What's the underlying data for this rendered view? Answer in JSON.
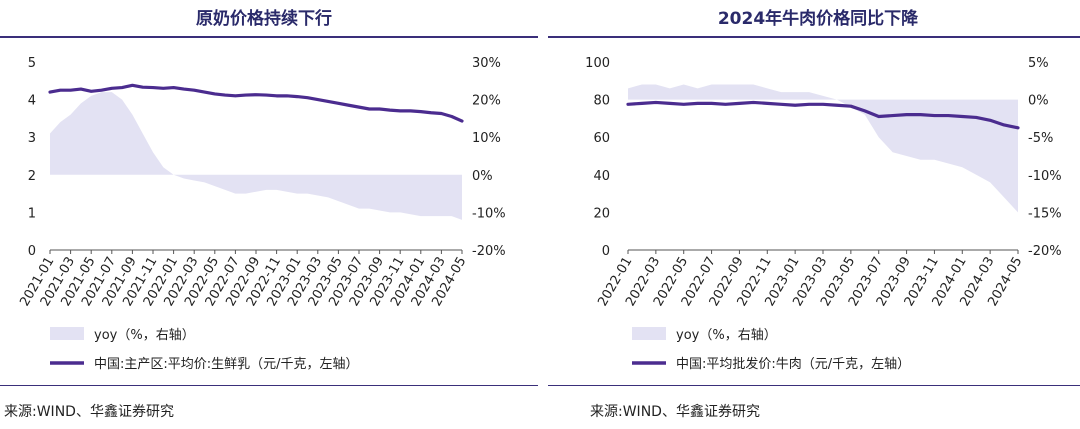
{
  "charts": {
    "left": {
      "title": "原奶价格持续下行",
      "source": "来源:WIND、华鑫证券研究"
    },
    "right": {
      "title": "2024年牛肉价格同比下降",
      "source": "来源:WIND、华鑫证券研究"
    }
  },
  "colors": {
    "line": "#4b2c8f",
    "area": "#e3e2f3",
    "title": "#2a2a6a",
    "rule": "#3a2f7a"
  },
  "chart_data": [
    {
      "type": "line",
      "title": "原奶价格持续下行",
      "x": [
        "2021-01",
        "2021-02",
        "2021-03",
        "2021-04",
        "2021-05",
        "2021-06",
        "2021-07",
        "2021-08",
        "2021-09",
        "2021-10",
        "2021-11",
        "2021-12",
        "2022-01",
        "2022-02",
        "2022-03",
        "2022-04",
        "2022-05",
        "2022-06",
        "2022-07",
        "2022-08",
        "2022-09",
        "2022-10",
        "2022-11",
        "2022-12",
        "2023-01",
        "2023-02",
        "2023-03",
        "2023-04",
        "2023-05",
        "2023-06",
        "2023-07",
        "2023-08",
        "2023-09",
        "2023-10",
        "2023-11",
        "2023-12",
        "2024-01",
        "2024-02",
        "2024-03",
        "2024-04",
        "2024-05"
      ],
      "x_tick_labels": [
        "2021-01",
        "2021-03",
        "2021-05",
        "2021-07",
        "2021-09",
        "2021-11",
        "2022-01",
        "2022-03",
        "2022-05",
        "2022-07",
        "2022-09",
        "2022-11",
        "2023-01",
        "2023-03",
        "2023-05",
        "2023-07",
        "2023-09",
        "2023-11",
        "2024-01",
        "2024-03",
        "2024-05"
      ],
      "y_left_ticks": [
        "0",
        "1",
        "2",
        "3",
        "4",
        "5"
      ],
      "y_right_ticks": [
        "-20%",
        "-10%",
        "0%",
        "10%",
        "20%",
        "30%"
      ],
      "ylim_left": [
        0,
        5
      ],
      "ylim_right": [
        -20,
        30
      ],
      "series": [
        {
          "name": "yoy（%，右轴）",
          "kind": "area",
          "axis": "right",
          "values": [
            11,
            14,
            16,
            19,
            21,
            22,
            22,
            20,
            16,
            11,
            6,
            2,
            0,
            -1,
            -1.5,
            -2,
            -3,
            -4,
            -5,
            -5,
            -4.5,
            -4,
            -4,
            -4.5,
            -5,
            -5,
            -5.5,
            -6,
            -7,
            -8,
            -9,
            -9,
            -9.5,
            -10,
            -10,
            -10.5,
            -11,
            -11,
            -11,
            -11,
            -12
          ]
        },
        {
          "name": "中国:主产区:平均价:生鲜乳（元/千克，左轴）",
          "kind": "line",
          "axis": "left",
          "values": [
            4.2,
            4.25,
            4.25,
            4.28,
            4.22,
            4.25,
            4.3,
            4.32,
            4.38,
            4.33,
            4.32,
            4.3,
            4.32,
            4.28,
            4.25,
            4.2,
            4.15,
            4.12,
            4.1,
            4.12,
            4.13,
            4.12,
            4.1,
            4.1,
            4.08,
            4.05,
            4.0,
            3.95,
            3.9,
            3.85,
            3.8,
            3.75,
            3.75,
            3.72,
            3.7,
            3.7,
            3.68,
            3.65,
            3.63,
            3.55,
            3.43
          ]
        }
      ],
      "legend_placement": "bottom"
    },
    {
      "type": "line",
      "title": "2024年牛肉价格同比下降",
      "x": [
        "2022-01",
        "2022-02",
        "2022-03",
        "2022-04",
        "2022-05",
        "2022-06",
        "2022-07",
        "2022-08",
        "2022-09",
        "2022-10",
        "2022-11",
        "2022-12",
        "2023-01",
        "2023-02",
        "2023-03",
        "2023-04",
        "2023-05",
        "2023-06",
        "2023-07",
        "2023-08",
        "2023-09",
        "2023-10",
        "2023-11",
        "2023-12",
        "2024-01",
        "2024-02",
        "2024-03",
        "2024-04",
        "2024-05"
      ],
      "x_tick_labels": [
        "2022-01",
        "2022-03",
        "2022-05",
        "2022-07",
        "2022-09",
        "2022-11",
        "2023-01",
        "2023-03",
        "2023-05",
        "2023-07",
        "2023-09",
        "2023-11",
        "2024-01",
        "2024-03",
        "2024-05"
      ],
      "y_left_ticks": [
        "0",
        "20",
        "40",
        "60",
        "80",
        "100"
      ],
      "y_right_ticks": [
        "-20%",
        "-15%",
        "-10%",
        "-5%",
        "0%",
        "5%"
      ],
      "ylim_left": [
        0,
        100
      ],
      "ylim_right": [
        -20,
        5
      ],
      "series": [
        {
          "name": "yoy（%，右轴）",
          "kind": "area",
          "axis": "right",
          "values": [
            1.5,
            2,
            2,
            1.5,
            2,
            1.5,
            2,
            2,
            2,
            2,
            1.5,
            1,
            1,
            1,
            0.5,
            0,
            -1,
            -2,
            -5,
            -7,
            -7.5,
            -8,
            -8,
            -8.5,
            -9,
            -10,
            -11,
            -13,
            -15
          ]
        },
        {
          "name": "中国:平均批发价:牛肉（元/千克，左轴）",
          "kind": "line",
          "axis": "left",
          "values": [
            77.5,
            78,
            78.5,
            78,
            77.5,
            78,
            78,
            77.5,
            78,
            78.5,
            78,
            77.5,
            77,
            77.5,
            77.5,
            77,
            76.5,
            74,
            71,
            71.5,
            72,
            72,
            71.5,
            71.5,
            71,
            70.5,
            69,
            66.5,
            65
          ]
        }
      ],
      "legend_placement": "bottom"
    }
  ]
}
